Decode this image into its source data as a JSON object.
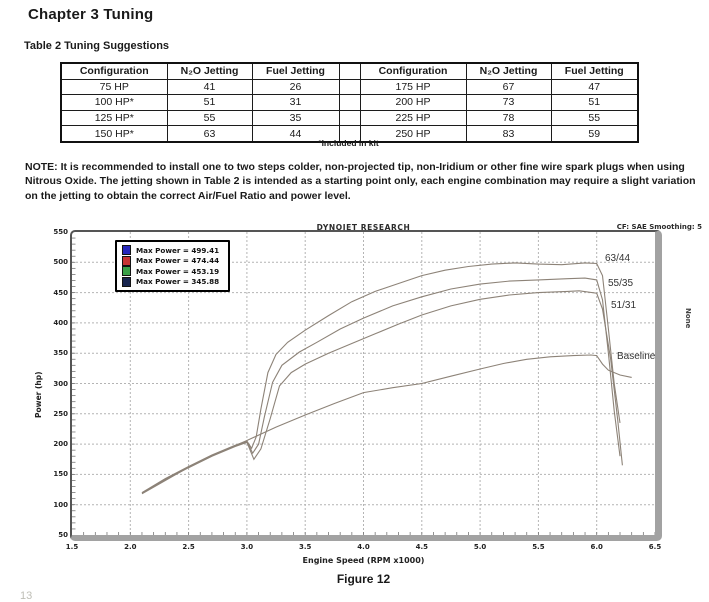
{
  "page": {
    "chapter_title": "Chapter 3  Tuning",
    "table_caption": "Table 2  Tuning Suggestions",
    "note": "NOTE:  It is recommended to install one to two steps colder, non-projected tip, non-Iridium or other fine wire spark plugs when using Nitrous Oxide. The jetting shown in Table 2 is intended as a starting point only, each engine combination may require a slight variation on the jetting to obtain the correct Air/Fuel Ratio and power level.",
    "figure_caption": "Figure 12",
    "page_number_fragment": "13"
  },
  "table": {
    "columns": [
      "Configuration",
      "N₂O Jetting",
      "Fuel Jetting",
      "",
      "Configuration",
      "N₂O Jetting",
      "Fuel Jetting"
    ],
    "rows": [
      [
        "75 HP",
        "41",
        "26",
        "",
        "175 HP",
        "67",
        "47"
      ],
      [
        "100 HP*",
        "51",
        "31",
        "",
        "200 HP",
        "73",
        "51"
      ],
      [
        "125 HP*",
        "55",
        "35",
        "",
        "225 HP",
        "78",
        "55"
      ],
      [
        "150 HP*",
        "63",
        "44",
        "",
        "250 HP",
        "83",
        "59"
      ]
    ],
    "footnote": "*Included in kit"
  },
  "chart_data": {
    "type": "line",
    "title": "DYNOJET RESEARCH",
    "header_right": "CF: SAE  Smoothing: 5",
    "right_side_label": "None",
    "xlabel": "Engine Speed (RPM x1000)",
    "ylabel": "Power (hp)",
    "xlim": [
      1.5,
      6.5
    ],
    "ylim": [
      50,
      550
    ],
    "x_ticks": [
      "1.5",
      "2.0",
      "2.5",
      "3.0",
      "3.5",
      "4.0",
      "4.5",
      "5.0",
      "5.5",
      "6.0",
      "6.5"
    ],
    "y_ticks": [
      550,
      500,
      450,
      400,
      350,
      300,
      250,
      200,
      150,
      100,
      50
    ],
    "grid": "dashed",
    "grid_color": "#b4b4b4",
    "line_color": "#8d8378",
    "legend_position": "top-left",
    "series": [
      {
        "name": "63/44",
        "legend_label": "Max Power = 499.41",
        "max_power": 499.41,
        "legend_color": "#2626bb",
        "annotation": "63/44",
        "points": [
          [
            2.1,
            120
          ],
          [
            2.3,
            143
          ],
          [
            2.5,
            163
          ],
          [
            2.7,
            182
          ],
          [
            2.9,
            198
          ],
          [
            3.0,
            205
          ],
          [
            3.04,
            193
          ],
          [
            3.08,
            212
          ],
          [
            3.12,
            258
          ],
          [
            3.18,
            318
          ],
          [
            3.25,
            348
          ],
          [
            3.35,
            368
          ],
          [
            3.5,
            388
          ],
          [
            3.7,
            412
          ],
          [
            3.9,
            435
          ],
          [
            4.1,
            452
          ],
          [
            4.3,
            465
          ],
          [
            4.5,
            478
          ],
          [
            4.7,
            487
          ],
          [
            4.9,
            493
          ],
          [
            5.1,
            497
          ],
          [
            5.3,
            499
          ],
          [
            5.5,
            497
          ],
          [
            5.7,
            496
          ],
          [
            5.9,
            499
          ],
          [
            6.0,
            498
          ],
          [
            6.05,
            478
          ],
          [
            6.1,
            390
          ],
          [
            6.15,
            300
          ],
          [
            6.2,
            235
          ]
        ]
      },
      {
        "name": "55/35",
        "legend_label": "Max Power = 474.44",
        "max_power": 474.44,
        "legend_color": "#c63434",
        "annotation": "55/35",
        "points": [
          [
            2.1,
            119
          ],
          [
            2.3,
            142
          ],
          [
            2.5,
            162
          ],
          [
            2.7,
            181
          ],
          [
            2.9,
            197
          ],
          [
            3.0,
            204
          ],
          [
            3.05,
            185
          ],
          [
            3.1,
            200
          ],
          [
            3.15,
            245
          ],
          [
            3.22,
            302
          ],
          [
            3.3,
            330
          ],
          [
            3.45,
            352
          ],
          [
            3.6,
            368
          ],
          [
            3.8,
            390
          ],
          [
            4.0,
            408
          ],
          [
            4.25,
            428
          ],
          [
            4.5,
            443
          ],
          [
            4.75,
            456
          ],
          [
            5.0,
            464
          ],
          [
            5.25,
            469
          ],
          [
            5.5,
            471
          ],
          [
            5.75,
            473
          ],
          [
            5.9,
            474
          ],
          [
            6.0,
            471
          ],
          [
            6.05,
            438
          ],
          [
            6.1,
            350
          ],
          [
            6.15,
            255
          ],
          [
            6.2,
            180
          ]
        ]
      },
      {
        "name": "51/31",
        "legend_label": "Max Power = 453.19",
        "max_power": 453.19,
        "legend_color": "#3aa048",
        "annotation": "51/31",
        "points": [
          [
            2.1,
            119
          ],
          [
            2.3,
            141
          ],
          [
            2.5,
            161
          ],
          [
            2.7,
            180
          ],
          [
            2.9,
            196
          ],
          [
            3.0,
            203
          ],
          [
            3.06,
            175
          ],
          [
            3.12,
            192
          ],
          [
            3.2,
            242
          ],
          [
            3.28,
            296
          ],
          [
            3.38,
            318
          ],
          [
            3.5,
            332
          ],
          [
            3.7,
            350
          ],
          [
            3.9,
            366
          ],
          [
            4.1,
            382
          ],
          [
            4.3,
            398
          ],
          [
            4.5,
            413
          ],
          [
            4.75,
            428
          ],
          [
            5.0,
            439
          ],
          [
            5.25,
            446
          ],
          [
            5.5,
            450
          ],
          [
            5.75,
            452
          ],
          [
            5.85,
            453
          ],
          [
            6.0,
            449
          ],
          [
            6.05,
            423
          ],
          [
            6.12,
            340
          ],
          [
            6.18,
            240
          ],
          [
            6.22,
            165
          ]
        ]
      },
      {
        "name": "Baseline",
        "legend_label": "Max Power = 345.88",
        "max_power": 345.88,
        "legend_color": "#17244e",
        "annotation": "Baseline",
        "points": [
          [
            2.1,
            118
          ],
          [
            2.3,
            140
          ],
          [
            2.5,
            162
          ],
          [
            2.75,
            185
          ],
          [
            3.0,
            206
          ],
          [
            3.25,
            228
          ],
          [
            3.5,
            248
          ],
          [
            3.75,
            267
          ],
          [
            4.0,
            285
          ],
          [
            4.25,
            293
          ],
          [
            4.5,
            300
          ],
          [
            4.75,
            312
          ],
          [
            5.0,
            324
          ],
          [
            5.2,
            333
          ],
          [
            5.4,
            340
          ],
          [
            5.6,
            344
          ],
          [
            5.8,
            346
          ],
          [
            5.95,
            347
          ],
          [
            6.0,
            346
          ],
          [
            6.05,
            332
          ],
          [
            6.1,
            322
          ],
          [
            6.2,
            314
          ],
          [
            6.3,
            310
          ]
        ]
      }
    ]
  }
}
